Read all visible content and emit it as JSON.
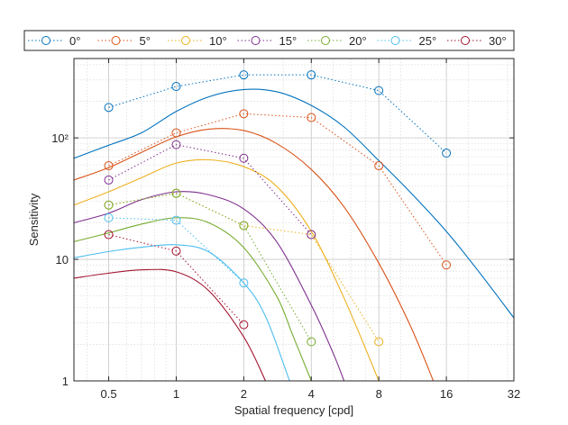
{
  "chart_data": {
    "type": "line",
    "xlabel": "Spatial frequency [cpd]",
    "ylabel": "Sensitivity",
    "xscale": "log",
    "yscale": "log",
    "xlim": [
      0.35,
      32
    ],
    "ylim": [
      1,
      450
    ],
    "xticks": [
      0.5,
      1,
      2,
      4,
      8,
      16,
      32
    ],
    "xtick_labels": [
      "0.5",
      "1",
      "2",
      "4",
      "8",
      "16",
      "32"
    ],
    "yticks": [
      1,
      10,
      100
    ],
    "ytick_labels": [
      "1",
      "10",
      "10²"
    ],
    "grid": true,
    "minor_grid": true,
    "legend": {
      "placement": "top-outside",
      "orientation": "horizontal"
    },
    "series": [
      {
        "name": "0°",
        "color": "#0072BD",
        "measured": {
          "x": [
            0.5,
            1,
            2,
            4,
            8,
            16
          ],
          "y": [
            178,
            265,
            330,
            330,
            245,
            75
          ]
        },
        "model": {
          "x": [
            0.35,
            0.5,
            0.7,
            1,
            1.4,
            2,
            2.8,
            4,
            5.6,
            8,
            11,
            16,
            22,
            32
          ],
          "y": [
            68,
            87,
            110,
            165,
            218,
            250,
            240,
            185,
            123,
            65,
            36,
            17,
            8.2,
            3.3
          ]
        }
      },
      {
        "name": "5°",
        "color": "#D95319",
        "measured": {
          "x": [
            0.5,
            1,
            2,
            4,
            8,
            16
          ],
          "y": [
            59,
            110,
            158,
            147,
            59,
            9
          ]
        },
        "model": {
          "x": [
            0.35,
            0.5,
            0.7,
            1,
            1.4,
            2,
            2.8,
            4,
            5.6,
            8,
            11,
            14
          ],
          "y": [
            45,
            57,
            76,
            102,
            118,
            115,
            90,
            55,
            27,
            9.3,
            2.9,
            1
          ]
        }
      },
      {
        "name": "10°",
        "color": "#EDB120",
        "measured": {
          "x": [
            0.5,
            1,
            2,
            4,
            8
          ],
          "y": [
            28,
            35,
            19,
            16,
            2.1
          ]
        },
        "model": {
          "x": [
            0.35,
            0.5,
            0.7,
            1,
            1.4,
            2,
            2.8,
            4,
            5.6,
            8
          ],
          "y": [
            28,
            36,
            47,
            62,
            66,
            58,
            40,
            17,
            4.8,
            1
          ]
        }
      },
      {
        "name": "15°",
        "color": "#7E2F8E",
        "measured": {
          "x": [
            0.5,
            1,
            2,
            4
          ],
          "y": [
            45,
            88,
            68,
            16
          ]
        },
        "model": {
          "x": [
            0.35,
            0.5,
            0.7,
            1,
            1.4,
            2,
            2.8,
            4,
            5,
            5.6
          ],
          "y": [
            20,
            24,
            31,
            36,
            34,
            26,
            14,
            4.2,
            1.7,
            1
          ]
        }
      },
      {
        "name": "20°",
        "color": "#77AC30",
        "measured": {
          "x": [
            0.5,
            1,
            2,
            4
          ],
          "y": [
            28,
            35,
            19,
            2.1
          ]
        },
        "model": {
          "x": [
            0.35,
            0.5,
            0.7,
            1,
            1.4,
            2,
            2.8,
            3.3,
            4
          ],
          "y": [
            14,
            16.5,
            19.5,
            22,
            20,
            12.5,
            5,
            2.4,
            1
          ]
        }
      },
      {
        "name": "25°",
        "color": "#4DBEEE",
        "measured": {
          "x": [
            0.5,
            1,
            2
          ],
          "y": [
            22,
            21,
            6.4
          ]
        },
        "model": {
          "x": [
            0.35,
            0.5,
            0.7,
            1,
            1.4,
            2,
            2.5,
            3.2
          ],
          "y": [
            10.3,
            11.6,
            12.6,
            13.2,
            11.5,
            6.4,
            3.4,
            1
          ]
        }
      },
      {
        "name": "30°",
        "color": "#A2142F",
        "measured": {
          "x": [
            0.5,
            1,
            2
          ],
          "y": [
            16,
            11.7,
            2.9
          ]
        },
        "model": {
          "x": [
            0.35,
            0.5,
            0.7,
            1,
            1.4,
            2,
            2.5
          ],
          "y": [
            7,
            7.7,
            8.2,
            7.9,
            5.5,
            2.3,
            1
          ]
        }
      }
    ]
  }
}
